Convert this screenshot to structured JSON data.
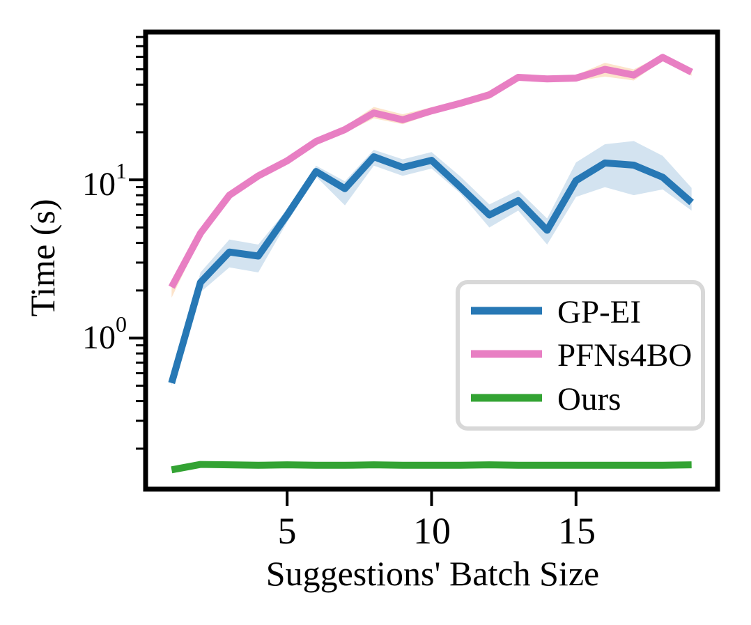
{
  "figure": {
    "background": "#ffffff",
    "xlabel": "Suggestions' Batch Size",
    "ylabel": "Time (s)",
    "x_tick_labels": [
      "5",
      "10",
      "15"
    ],
    "y_tick_labels": [
      {
        "base": "10",
        "exp": "1"
      },
      {
        "base": "10",
        "exp": "0"
      }
    ]
  },
  "legend": {
    "border_color": "#d8d8d8",
    "fill_color": "#ffffff"
  },
  "chart_data": {
    "type": "line",
    "title": "",
    "xlabel": "Suggestions' Batch Size",
    "ylabel": "Time (s)",
    "yscale": "log",
    "xlim": [
      0.1,
      19.9
    ],
    "ylim": [
      0.111,
      86
    ],
    "x_ticks": [
      5,
      10,
      15
    ],
    "y_major_ticks": [
      1,
      10
    ],
    "grid": false,
    "legend_position": "center-right",
    "x": [
      1,
      2,
      3,
      4,
      5,
      6,
      7,
      8,
      9,
      10,
      11,
      12,
      13,
      14,
      15,
      16,
      17,
      18,
      19
    ],
    "series": [
      {
        "name": "GP-EI",
        "color": "#2778b5",
        "band_color": "#d3e3f0",
        "values": [
          0.52,
          2.25,
          3.5,
          3.3,
          6.0,
          11.3,
          8.8,
          14.0,
          12.0,
          13.3,
          9.0,
          6.0,
          7.4,
          4.8,
          9.9,
          12.8,
          12.4,
          10.4,
          7.2
        ],
        "band_upper": [
          0.55,
          2.6,
          4.2,
          3.9,
          6.5,
          12.3,
          9.8,
          15.5,
          13.5,
          15.0,
          10.5,
          7.0,
          8.6,
          5.7,
          12.9,
          16.8,
          17.6,
          14.2,
          8.9
        ],
        "band_lower": [
          0.5,
          1.95,
          2.8,
          2.6,
          5.4,
          10.5,
          6.9,
          12.3,
          10.6,
          11.8,
          8.2,
          5.0,
          6.4,
          3.9,
          7.8,
          9.0,
          8.0,
          8.7,
          6.4
        ]
      },
      {
        "name": "PFNs4BO",
        "color": "#e87fc3",
        "band_color": "#fce4cb",
        "values": [
          2.1,
          4.6,
          8.0,
          10.6,
          13.2,
          17.5,
          20.8,
          26.5,
          24.0,
          27.3,
          30.5,
          34.5,
          44.5,
          43.5,
          44.0,
          50.0,
          46.0,
          59.5,
          48.0
        ],
        "band_upper": [
          2.25,
          4.85,
          8.3,
          11.0,
          13.7,
          18.2,
          21.8,
          28.9,
          26.0,
          28.8,
          32.0,
          36.5,
          46.0,
          45.5,
          46.0,
          55.0,
          50.0,
          61.5,
          50.5
        ],
        "band_lower": [
          1.8,
          4.3,
          7.6,
          10.1,
          12.6,
          16.7,
          19.8,
          24.5,
          22.5,
          26.0,
          29.0,
          32.5,
          42.5,
          41.5,
          42.0,
          45.0,
          42.5,
          57.0,
          45.5
        ]
      },
      {
        "name": "Ours",
        "color": "#33a333",
        "band_color": null,
        "values": [
          0.147,
          0.159,
          0.158,
          0.157,
          0.158,
          0.157,
          0.157,
          0.158,
          0.157,
          0.157,
          0.157,
          0.158,
          0.157,
          0.157,
          0.157,
          0.157,
          0.157,
          0.157,
          0.158
        ]
      }
    ]
  }
}
